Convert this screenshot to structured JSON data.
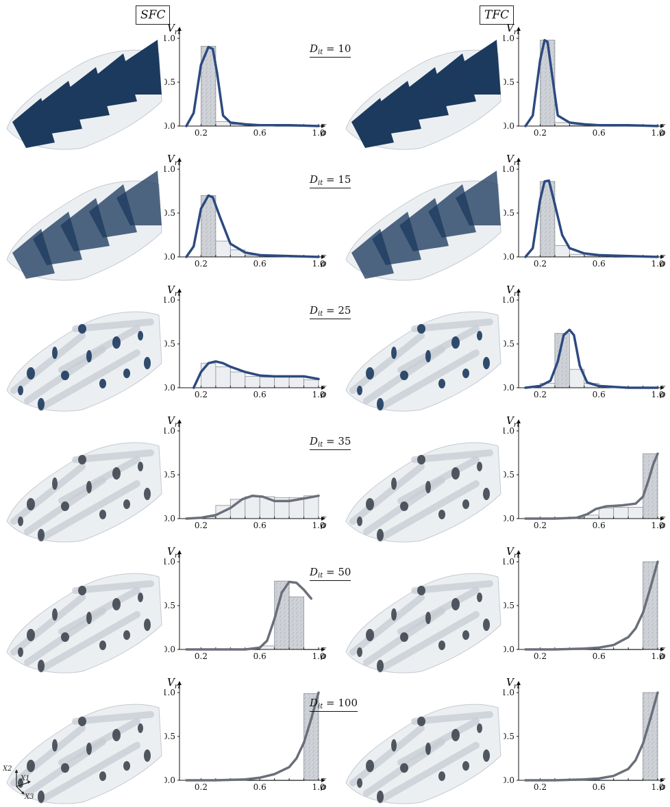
{
  "columns": {
    "left_label": "SFC",
    "right_label": "TFC"
  },
  "axis": {
    "y_title_main": "V",
    "y_title_sub": "rt",
    "x_title": "ρ",
    "x_ticks": [
      "0.2",
      "0.6",
      "1.0"
    ],
    "x_tick_values": [
      0.2,
      0.6,
      1.0
    ],
    "y_ticks": [
      "0.0",
      "0.5",
      "1.0"
    ],
    "y_tick_values": [
      0.0,
      0.5,
      1.0
    ]
  },
  "triad": {
    "x2": "X2",
    "x1": "X1",
    "x3": "X3"
  },
  "rows": [
    {
      "dit_label": "D",
      "dit_sub": "it",
      "dit_value": "= 10"
    },
    {
      "dit_label": "D",
      "dit_sub": "it",
      "dit_value": "= 15"
    },
    {
      "dit_label": "D",
      "dit_sub": "it",
      "dit_value": "= 25"
    },
    {
      "dit_label": "D",
      "dit_sub": "it",
      "dit_value": "= 35"
    },
    {
      "dit_label": "D",
      "dit_sub": "it",
      "dit_value": "= 50"
    },
    {
      "dit_label": "D",
      "dit_sub": "it",
      "dit_value": "= 100"
    }
  ],
  "colors": {
    "curve_blue": "#2d4a80",
    "curve_grey": "#6b6f7a",
    "render_dark": "#1c3a5e",
    "render_light": "#dde2e8",
    "bar_fill": "#cfd3d8",
    "bar_stroke": "#8a8f96"
  },
  "chart_data": [
    {
      "type": "bar",
      "panel": "SFC, D_it = 10",
      "xlim": [
        0.1,
        1.0
      ],
      "ylim": [
        0,
        1.0
      ],
      "bar_edges": [
        0.2,
        0.3,
        0.4,
        0.5,
        0.6,
        0.7,
        0.8,
        0.9,
        1.0
      ],
      "values": [
        0.91,
        0.05,
        0.02,
        0.01,
        0.01,
        0.0,
        0.0,
        0.0
      ],
      "curve": {
        "x": [
          0.1,
          0.15,
          0.2,
          0.25,
          0.28,
          0.31,
          0.35,
          0.4,
          0.5,
          0.6,
          0.8,
          1.0
        ],
        "y": [
          0.0,
          0.15,
          0.7,
          0.9,
          0.88,
          0.6,
          0.12,
          0.04,
          0.02,
          0.01,
          0.01,
          0.0
        ]
      }
    },
    {
      "type": "bar",
      "panel": "TFC, D_it = 10",
      "xlim": [
        0.1,
        1.0
      ],
      "ylim": [
        0,
        1.0
      ],
      "bar_edges": [
        0.2,
        0.3,
        0.4,
        0.5,
        0.6,
        0.7,
        0.8,
        0.9,
        1.0
      ],
      "values": [
        0.98,
        0.04,
        0.01,
        0.01,
        0.0,
        0.0,
        0.0,
        0.0
      ],
      "curve": {
        "x": [
          0.1,
          0.15,
          0.2,
          0.23,
          0.25,
          0.28,
          0.32,
          0.4,
          0.5,
          0.6,
          0.8,
          1.0
        ],
        "y": [
          0.0,
          0.12,
          0.75,
          0.98,
          0.96,
          0.6,
          0.12,
          0.04,
          0.02,
          0.01,
          0.01,
          0.0
        ]
      }
    },
    {
      "type": "bar",
      "panel": "SFC, D_it = 15",
      "xlim": [
        0.1,
        1.0
      ],
      "ylim": [
        0,
        1.0
      ],
      "bar_edges": [
        0.2,
        0.3,
        0.4,
        0.5,
        0.6,
        0.7,
        0.8,
        0.9,
        1.0
      ],
      "values": [
        0.7,
        0.18,
        0.08,
        0.02,
        0.01,
        0.01,
        0.0,
        0.0
      ],
      "curve": {
        "x": [
          0.1,
          0.15,
          0.2,
          0.25,
          0.28,
          0.33,
          0.4,
          0.5,
          0.6,
          0.8,
          1.0
        ],
        "y": [
          0.0,
          0.12,
          0.55,
          0.7,
          0.68,
          0.45,
          0.15,
          0.05,
          0.02,
          0.01,
          0.0
        ]
      }
    },
    {
      "type": "bar",
      "panel": "TFC, D_it = 15",
      "xlim": [
        0.1,
        1.0
      ],
      "ylim": [
        0,
        1.0
      ],
      "bar_edges": [
        0.2,
        0.3,
        0.4,
        0.5,
        0.6,
        0.7,
        0.8,
        0.9,
        1.0
      ],
      "values": [
        0.86,
        0.13,
        0.03,
        0.01,
        0.01,
        0.0,
        0.0,
        0.0
      ],
      "curve": {
        "x": [
          0.1,
          0.15,
          0.2,
          0.23,
          0.26,
          0.3,
          0.35,
          0.4,
          0.5,
          0.6,
          0.8,
          1.0
        ],
        "y": [
          0.0,
          0.1,
          0.65,
          0.86,
          0.87,
          0.6,
          0.25,
          0.1,
          0.04,
          0.02,
          0.01,
          0.0
        ]
      }
    },
    {
      "type": "bar",
      "panel": "SFC, D_it = 25",
      "xlim": [
        0.1,
        1.0
      ],
      "ylim": [
        0,
        1.0
      ],
      "bar_edges": [
        0.2,
        0.3,
        0.4,
        0.5,
        0.6,
        0.7,
        0.8,
        0.9,
        1.0
      ],
      "values": [
        0.28,
        0.24,
        0.18,
        0.13,
        0.12,
        0.12,
        0.12,
        0.09
      ],
      "curve": {
        "x": [
          0.15,
          0.2,
          0.25,
          0.3,
          0.35,
          0.4,
          0.5,
          0.6,
          0.7,
          0.8,
          0.9,
          1.0
        ],
        "y": [
          0.0,
          0.18,
          0.28,
          0.3,
          0.28,
          0.24,
          0.18,
          0.14,
          0.13,
          0.13,
          0.13,
          0.1
        ]
      }
    },
    {
      "type": "bar",
      "panel": "TFC, D_it = 25",
      "xlim": [
        0.1,
        1.0
      ],
      "ylim": [
        0,
        1.0
      ],
      "bar_edges": [
        0.2,
        0.3,
        0.4,
        0.5,
        0.6,
        0.7,
        0.8,
        0.9,
        1.0
      ],
      "values": [
        0.05,
        0.62,
        0.21,
        0.05,
        0.02,
        0.01,
        0.0,
        0.0
      ],
      "curve": {
        "x": [
          0.1,
          0.2,
          0.27,
          0.32,
          0.36,
          0.4,
          0.43,
          0.47,
          0.52,
          0.6,
          0.7,
          0.8,
          1.0
        ],
        "y": [
          0.0,
          0.02,
          0.08,
          0.3,
          0.6,
          0.66,
          0.6,
          0.25,
          0.06,
          0.02,
          0.01,
          0.0,
          0.0
        ]
      }
    },
    {
      "type": "bar",
      "panel": "SFC, D_it = 35",
      "xlim": [
        0.1,
        1.0
      ],
      "ylim": [
        0,
        1.0
      ],
      "bar_edges": [
        0.2,
        0.3,
        0.4,
        0.5,
        0.6,
        0.7,
        0.8,
        0.9,
        1.0
      ],
      "values": [
        0.02,
        0.15,
        0.22,
        0.25,
        0.25,
        0.24,
        0.24,
        0.26
      ],
      "curve": {
        "x": [
          0.1,
          0.2,
          0.3,
          0.4,
          0.48,
          0.55,
          0.62,
          0.7,
          0.8,
          0.9,
          1.0
        ],
        "y": [
          0.0,
          0.01,
          0.04,
          0.12,
          0.22,
          0.26,
          0.25,
          0.2,
          0.2,
          0.23,
          0.26
        ]
      }
    },
    {
      "type": "bar",
      "panel": "TFC, D_it = 35",
      "xlim": [
        0.1,
        1.0
      ],
      "ylim": [
        0,
        1.0
      ],
      "bar_edges": [
        0.2,
        0.3,
        0.4,
        0.5,
        0.6,
        0.7,
        0.8,
        0.9,
        1.0
      ],
      "values": [
        0.0,
        0.0,
        0.01,
        0.04,
        0.12,
        0.13,
        0.13,
        0.74
      ],
      "curve": {
        "x": [
          0.1,
          0.3,
          0.45,
          0.52,
          0.58,
          0.65,
          0.75,
          0.85,
          0.9,
          0.94,
          0.97,
          1.0
        ],
        "y": [
          0.0,
          0.0,
          0.01,
          0.05,
          0.11,
          0.14,
          0.15,
          0.17,
          0.25,
          0.45,
          0.62,
          0.74
        ]
      }
    },
    {
      "type": "bar",
      "panel": "SFC, D_it = 50",
      "xlim": [
        0.1,
        1.0
      ],
      "ylim": [
        0,
        1.0
      ],
      "bar_edges": [
        0.2,
        0.3,
        0.4,
        0.5,
        0.6,
        0.7,
        0.8,
        0.9,
        1.0
      ],
      "values": [
        0.0,
        0.0,
        0.0,
        0.0,
        0.04,
        0.78,
        0.6,
        0.0
      ],
      "curve": {
        "x": [
          0.1,
          0.3,
          0.5,
          0.6,
          0.65,
          0.7,
          0.75,
          0.8,
          0.85,
          0.9,
          0.95
        ],
        "y": [
          0.0,
          0.0,
          0.0,
          0.02,
          0.1,
          0.35,
          0.65,
          0.77,
          0.76,
          0.68,
          0.58
        ]
      }
    },
    {
      "type": "bar",
      "panel": "TFC, D_it = 50",
      "xlim": [
        0.1,
        1.0
      ],
      "ylim": [
        0,
        1.0
      ],
      "bar_edges": [
        0.2,
        0.3,
        0.4,
        0.5,
        0.6,
        0.7,
        0.8,
        0.9,
        1.0
      ],
      "values": [
        0.0,
        0.0,
        0.0,
        0.0,
        0.0,
        0.0,
        0.0,
        1.0
      ],
      "curve": {
        "x": [
          0.1,
          0.3,
          0.5,
          0.6,
          0.7,
          0.8,
          0.85,
          0.9,
          0.95,
          1.0
        ],
        "y": [
          0.0,
          0.0,
          0.01,
          0.02,
          0.05,
          0.14,
          0.24,
          0.42,
          0.7,
          1.0
        ]
      }
    },
    {
      "type": "bar",
      "panel": "SFC, D_it = 100",
      "xlim": [
        0.1,
        1.0
      ],
      "ylim": [
        0,
        1.0
      ],
      "bar_edges": [
        0.2,
        0.3,
        0.4,
        0.5,
        0.6,
        0.7,
        0.8,
        0.9,
        1.0
      ],
      "values": [
        0.0,
        0.0,
        0.0,
        0.0,
        0.0,
        0.0,
        0.0,
        0.99
      ],
      "curve": {
        "x": [
          0.1,
          0.3,
          0.5,
          0.6,
          0.7,
          0.8,
          0.85,
          0.9,
          0.95,
          1.0
        ],
        "y": [
          0.0,
          0.0,
          0.01,
          0.03,
          0.07,
          0.15,
          0.25,
          0.43,
          0.7,
          1.0
        ]
      }
    },
    {
      "type": "bar",
      "panel": "TFC, D_it = 100",
      "xlim": [
        0.1,
        1.0
      ],
      "ylim": [
        0,
        1.0
      ],
      "bar_edges": [
        0.2,
        0.3,
        0.4,
        0.5,
        0.6,
        0.7,
        0.8,
        0.9,
        1.0
      ],
      "values": [
        0.0,
        0.0,
        0.0,
        0.0,
        0.0,
        0.0,
        0.0,
        1.0
      ],
      "curve": {
        "x": [
          0.1,
          0.3,
          0.5,
          0.6,
          0.7,
          0.8,
          0.85,
          0.9,
          0.95,
          1.0
        ],
        "y": [
          0.0,
          0.0,
          0.01,
          0.02,
          0.05,
          0.13,
          0.23,
          0.42,
          0.7,
          1.0
        ]
      }
    }
  ]
}
